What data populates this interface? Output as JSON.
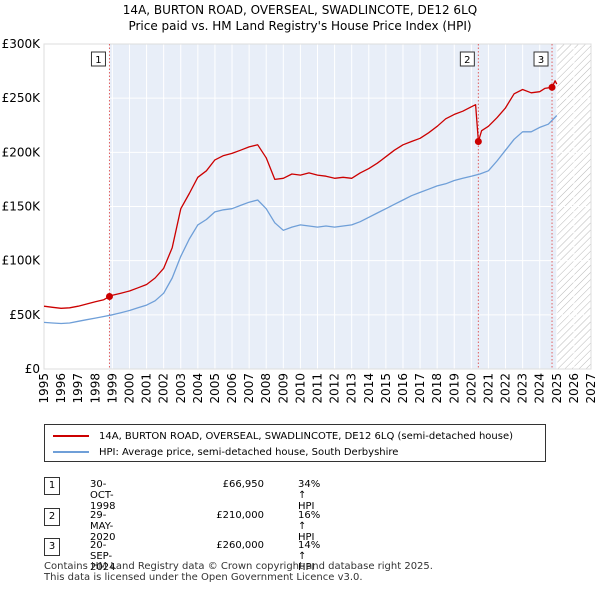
{
  "header": {
    "title_line1": "14A, BURTON ROAD, OVERSEAL, SWADLINCOTE, DE12 6LQ",
    "title_line2": "Price paid vs. HM Land Registry's House Price Index (HPI)"
  },
  "colors": {
    "property": "#cc0000",
    "hpi": "#6f9fd8",
    "shade": "#e8eef8",
    "marker_line": "#e06060"
  },
  "chart_data": {
    "type": "line",
    "x_range": [
      1995,
      2027
    ],
    "ylim": [
      0,
      300000
    ],
    "y_ticks": [
      0,
      50000,
      100000,
      150000,
      200000,
      250000,
      300000
    ],
    "y_tick_labels": [
      "£0",
      "£50K",
      "£100K",
      "£150K",
      "£200K",
      "£250K",
      "£300K"
    ],
    "x_ticks": [
      1995,
      1996,
      1997,
      1998,
      1999,
      2000,
      2001,
      2002,
      2003,
      2004,
      2005,
      2006,
      2007,
      2008,
      2009,
      2010,
      2011,
      2012,
      2013,
      2014,
      2015,
      2016,
      2017,
      2018,
      2019,
      2020,
      2021,
      2022,
      2023,
      2024,
      2025,
      2026,
      2027
    ],
    "x_tick_labels": [
      "1995",
      "1996",
      "1997",
      "1998",
      "1999",
      "2000",
      "2001",
      "2002",
      "2003",
      "2004",
      "2005",
      "2006",
      "2007",
      "2008",
      "2009",
      "2010",
      "2011",
      "2012",
      "2013",
      "2014",
      "2015",
      "2016",
      "2017",
      "2018",
      "2019",
      "2020",
      "2021",
      "2022",
      "2023",
      "2024",
      "2025",
      "2026",
      "2027"
    ],
    "shaded_from": 1998.83,
    "future_from": 2025.0,
    "grid": true,
    "series": [
      {
        "name": "14A, BURTON ROAD, OVERSEAL, SWADLINCOTE, DE12 6LQ (semi-detached house)",
        "x": [
          1995.0,
          1995.5,
          1996.0,
          1996.5,
          1997.0,
          1997.5,
          1998.0,
          1998.5,
          1998.83,
          1999.0,
          1999.5,
          2000.0,
          2000.5,
          2001.0,
          2001.5,
          2002.0,
          2002.5,
          2003.0,
          2003.5,
          2004.0,
          2004.5,
          2005.0,
          2005.5,
          2006.0,
          2006.5,
          2007.0,
          2007.5,
          2008.0,
          2008.5,
          2009.0,
          2009.5,
          2010.0,
          2010.5,
          2011.0,
          2011.5,
          2012.0,
          2012.5,
          2013.0,
          2013.5,
          2014.0,
          2014.5,
          2015.0,
          2015.5,
          2016.0,
          2016.5,
          2017.0,
          2017.5,
          2018.0,
          2018.5,
          2019.0,
          2019.5,
          2020.0,
          2020.25,
          2020.41,
          2020.6,
          2021.0,
          2021.5,
          2022.0,
          2022.5,
          2023.0,
          2023.5,
          2024.0,
          2024.3,
          2024.72,
          2024.9,
          2025.0
        ],
        "values": [
          58000,
          57000,
          56000,
          56500,
          58000,
          60000,
          62000,
          64000,
          66950,
          68000,
          70000,
          72000,
          75000,
          78000,
          84000,
          93000,
          112000,
          148000,
          162000,
          177000,
          183000,
          193000,
          197000,
          199000,
          202000,
          205000,
          207000,
          195000,
          175000,
          176000,
          180000,
          179000,
          181000,
          179000,
          178000,
          176000,
          177000,
          176000,
          181000,
          185000,
          190000,
          196000,
          202000,
          207000,
          210000,
          213000,
          218000,
          224000,
          231000,
          235000,
          238000,
          242000,
          244000,
          210000,
          220000,
          224000,
          232000,
          241000,
          254000,
          258000,
          255000,
          256000,
          259000,
          260000,
          266000,
          263000
        ]
      },
      {
        "name": "HPI: Average price, semi-detached house, South Derbyshire",
        "x": [
          1995.0,
          1995.5,
          1996.0,
          1996.5,
          1997.0,
          1997.5,
          1998.0,
          1998.5,
          1999.0,
          1999.5,
          2000.0,
          2000.5,
          2001.0,
          2001.5,
          2002.0,
          2002.5,
          2003.0,
          2003.5,
          2004.0,
          2004.5,
          2005.0,
          2005.5,
          2006.0,
          2006.5,
          2007.0,
          2007.5,
          2008.0,
          2008.5,
          2009.0,
          2009.5,
          2010.0,
          2010.5,
          2011.0,
          2011.5,
          2012.0,
          2012.5,
          2013.0,
          2013.5,
          2014.0,
          2014.5,
          2015.0,
          2015.5,
          2016.0,
          2016.5,
          2017.0,
          2017.5,
          2018.0,
          2018.5,
          2019.0,
          2019.5,
          2020.0,
          2020.5,
          2021.0,
          2021.5,
          2022.0,
          2022.5,
          2023.0,
          2023.5,
          2024.0,
          2024.5,
          2025.0
        ],
        "values": [
          43000,
          42500,
          42000,
          42500,
          44000,
          45500,
          47000,
          48500,
          50000,
          52000,
          54000,
          56500,
          59000,
          63000,
          70000,
          84000,
          104000,
          120000,
          133000,
          138000,
          145000,
          147000,
          148000,
          151000,
          154000,
          156000,
          148000,
          135000,
          128000,
          131000,
          133000,
          132000,
          131000,
          132000,
          131000,
          132000,
          133000,
          136000,
          140000,
          144000,
          148000,
          152000,
          156000,
          160000,
          163000,
          166000,
          169000,
          171000,
          174000,
          176000,
          178000,
          180000,
          183000,
          192000,
          202000,
          212000,
          219000,
          219000,
          223000,
          226000,
          234000
        ]
      }
    ],
    "markers": [
      {
        "label": "1",
        "x": 1998.83,
        "y": 66950
      },
      {
        "label": "2",
        "x": 2020.41,
        "y": 210000
      },
      {
        "label": "3",
        "x": 2024.72,
        "y": 260000
      }
    ]
  },
  "legend": {
    "property_label": "14A, BURTON ROAD, OVERSEAL, SWADLINCOTE, DE12 6LQ (semi-detached house)",
    "hpi_label": "HPI: Average price, semi-detached house, South Derbyshire"
  },
  "transactions": [
    {
      "num": "1",
      "date": "30-OCT-1998",
      "price": "£66,950",
      "hpi": "34% ↑ HPI"
    },
    {
      "num": "2",
      "date": "29-MAY-2020",
      "price": "£210,000",
      "hpi": "16% ↑ HPI"
    },
    {
      "num": "3",
      "date": "20-SEP-2024",
      "price": "£260,000",
      "hpi": "14% ↑ HPI"
    }
  ],
  "footer": {
    "line1": "Contains HM Land Registry data © Crown copyright and database right 2025.",
    "line2": "This data is licensed under the Open Government Licence v3.0."
  }
}
